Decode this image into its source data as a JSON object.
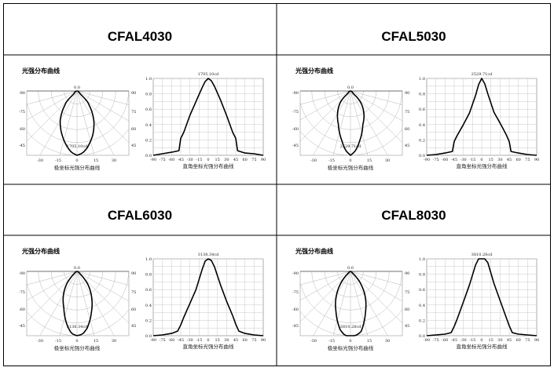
{
  "products": [
    {
      "model": "CFAL4030",
      "polar": {
        "heading": "光强分布曲线",
        "peak_label": "1705.10cd",
        "caption": "极坐标光强分布曲线"
      },
      "cartesian": {
        "peak_label": "1705.10cd",
        "caption": "直角坐标光强分布曲线"
      },
      "chart_data": {
        "type": "line",
        "title": "1705.10cd",
        "xlabel": "直角坐标光强分布曲线",
        "x": [
          -90,
          -75,
          -60,
          -48,
          -45,
          -40,
          -30,
          -20,
          -10,
          -5,
          0,
          5,
          10,
          20,
          30,
          40,
          45,
          48,
          60,
          75,
          90
        ],
        "series": [
          {
            "values": [
              0.0,
              0.02,
              0.04,
              0.06,
              0.22,
              0.3,
              0.52,
              0.7,
              0.88,
              0.96,
              1.0,
              0.97,
              0.9,
              0.72,
              0.52,
              0.3,
              0.22,
              0.06,
              0.03,
              0.02,
              0.0
            ]
          }
        ],
        "xlim": [
          -90,
          90
        ],
        "ylim": [
          0,
          1
        ]
      }
    },
    {
      "model": "CFAL5030",
      "polar": {
        "heading": "光强分布曲线",
        "peak_label": "2529.71cd",
        "caption": "极坐标光强分布曲线"
      },
      "cartesian": {
        "peak_label": "2529.71cd",
        "caption": "直角坐标光强分布曲线"
      },
      "chart_data": {
        "type": "line",
        "title": "2529.71cd",
        "xlabel": "直角坐标光强分布曲线",
        "x": [
          -90,
          -75,
          -60,
          -48,
          -45,
          -40,
          -30,
          -20,
          -10,
          -5,
          0,
          5,
          10,
          20,
          30,
          40,
          45,
          48,
          60,
          75,
          90
        ],
        "series": [
          {
            "values": [
              0.0,
              0.01,
              0.03,
              0.05,
              0.18,
              0.26,
              0.4,
              0.55,
              0.78,
              0.92,
              1.0,
              0.93,
              0.8,
              0.56,
              0.42,
              0.27,
              0.18,
              0.05,
              0.03,
              0.01,
              0.0
            ]
          }
        ],
        "xlim": [
          -90,
          90
        ],
        "ylim": [
          0,
          1
        ]
      }
    },
    {
      "model": "CFAL6030",
      "polar": {
        "heading": "光强分布曲线",
        "peak_label": "3138.34cd",
        "caption": "极坐标光强分布曲线"
      },
      "cartesian": {
        "peak_label": "3138.34cd",
        "caption": "直角坐标光强分布曲线"
      },
      "chart_data": {
        "type": "line",
        "title": "3138.34cd",
        "xlabel": "直角坐标光强分布曲线",
        "x": [
          -90,
          -75,
          -60,
          -50,
          -45,
          -40,
          -30,
          -20,
          -10,
          -5,
          0,
          5,
          10,
          20,
          30,
          40,
          45,
          50,
          60,
          75,
          90
        ],
        "series": [
          {
            "values": [
              0.0,
              0.01,
              0.03,
              0.06,
              0.14,
              0.24,
              0.42,
              0.6,
              0.86,
              0.97,
              1.0,
              0.98,
              0.9,
              0.66,
              0.45,
              0.26,
              0.15,
              0.06,
              0.03,
              0.01,
              0.0
            ]
          }
        ],
        "xlim": [
          -90,
          90
        ],
        "ylim": [
          0,
          1
        ]
      }
    },
    {
      "model": "CFAL8030",
      "polar": {
        "heading": "光强分布曲线",
        "peak_label": "3810.28cd",
        "caption": "极坐标光强分布曲线"
      },
      "cartesian": {
        "peak_label": "3810.28cd",
        "caption": "直角坐标光强分布曲线"
      },
      "chart_data": {
        "type": "line",
        "title": "3810.28cd",
        "xlabel": "直角坐标光强分布曲线",
        "x": [
          -90,
          -75,
          -60,
          -50,
          -45,
          -40,
          -30,
          -20,
          -10,
          -5,
          0,
          5,
          10,
          20,
          30,
          40,
          45,
          50,
          60,
          75,
          90
        ],
        "series": [
          {
            "values": [
              0.0,
              0.01,
              0.02,
              0.04,
              0.12,
              0.22,
              0.44,
              0.66,
              0.92,
              1.0,
              1.0,
              1.0,
              0.95,
              0.68,
              0.46,
              0.24,
              0.13,
              0.04,
              0.02,
              0.01,
              0.0
            ]
          }
        ],
        "xlim": [
          -90,
          90
        ],
        "ylim": [
          0,
          1
        ]
      }
    }
  ],
  "polar_axis": {
    "left_ticks": [
      "-90",
      "-75",
      "-60",
      "-45"
    ],
    "right_ticks": [
      "90",
      "75",
      "60",
      "45"
    ],
    "bottom_ticks": [
      "-30",
      "-15",
      "0",
      "15",
      "30"
    ],
    "top_tick": "0.0"
  },
  "cart_axis": {
    "x_ticks": [
      "-90",
      "-75",
      "-60",
      "-45",
      "-30",
      "-15",
      "0",
      "15",
      "30",
      "45",
      "60",
      "75",
      "90"
    ],
    "y_ticks": [
      "0.0",
      "0.2",
      "0.4",
      "0.6",
      "0.8",
      "1.0"
    ]
  }
}
